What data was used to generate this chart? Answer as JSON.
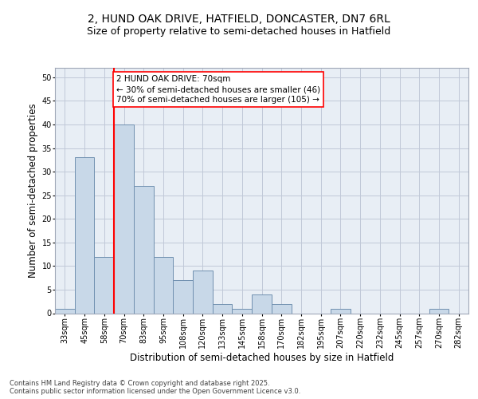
{
  "title_line1": "2, HUND OAK DRIVE, HATFIELD, DONCASTER, DN7 6RL",
  "title_line2": "Size of property relative to semi-detached houses in Hatfield",
  "xlabel": "Distribution of semi-detached houses by size in Hatfield",
  "ylabel": "Number of semi-detached properties",
  "categories": [
    "33sqm",
    "45sqm",
    "58sqm",
    "70sqm",
    "83sqm",
    "95sqm",
    "108sqm",
    "120sqm",
    "133sqm",
    "145sqm",
    "158sqm",
    "170sqm",
    "182sqm",
    "195sqm",
    "207sqm",
    "220sqm",
    "232sqm",
    "245sqm",
    "257sqm",
    "270sqm",
    "282sqm"
  ],
  "values": [
    1,
    33,
    12,
    40,
    27,
    12,
    7,
    9,
    2,
    1,
    4,
    2,
    0,
    0,
    1,
    0,
    0,
    0,
    0,
    1,
    0
  ],
  "bar_color": "#c8d8e8",
  "bar_edge_color": "#7090b0",
  "grid_color": "#c0c8d8",
  "background_color": "#e8eef5",
  "vline_x_idx": 3,
  "vline_color": "red",
  "annotation_text": "2 HUND OAK DRIVE: 70sqm\n← 30% of semi-detached houses are smaller (46)\n70% of semi-detached houses are larger (105) →",
  "ylim": [
    0,
    52
  ],
  "yticks": [
    0,
    5,
    10,
    15,
    20,
    25,
    30,
    35,
    40,
    45,
    50
  ],
  "footer_text": "Contains HM Land Registry data © Crown copyright and database right 2025.\nContains public sector information licensed under the Open Government Licence v3.0.",
  "title_fontsize": 10,
  "subtitle_fontsize": 9,
  "axis_label_fontsize": 8.5,
  "tick_fontsize": 7,
  "annotation_fontsize": 7.5,
  "footer_fontsize": 6
}
